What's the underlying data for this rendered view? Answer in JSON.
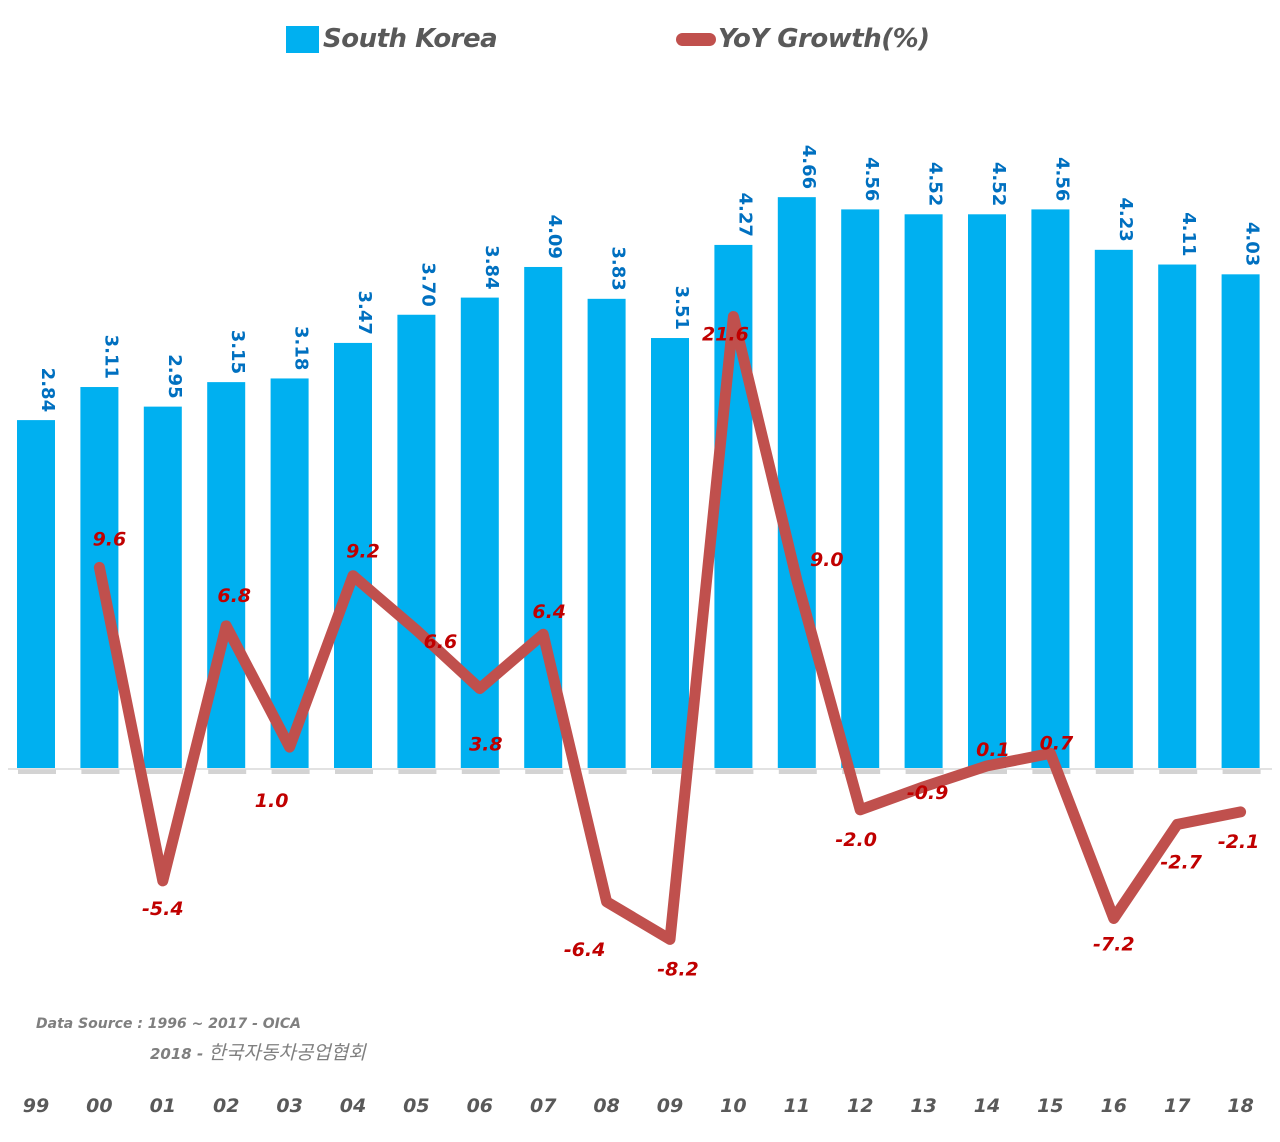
{
  "legend": {
    "bar_label": "South Korea",
    "line_label": "YoY Growth(%)"
  },
  "source": {
    "line1": "Data Source :  1996 ~ 2017 - OICA",
    "line2_prefix": "2018 - ",
    "line2_org": "한국자동차공업협회"
  },
  "chart_data": {
    "type": "bar",
    "title": "",
    "xlabel": "",
    "ylabel": "",
    "categories": [
      "99",
      "00",
      "01",
      "02",
      "03",
      "04",
      "05",
      "06",
      "07",
      "08",
      "09",
      "10",
      "11",
      "12",
      "13",
      "14",
      "15",
      "16",
      "17",
      "18"
    ],
    "series": [
      {
        "name": "South Korea",
        "type": "bar",
        "color": "#00b0f0",
        "label_color": "#0070c0",
        "axis": "left",
        "values": [
          2.84,
          3.11,
          2.95,
          3.15,
          3.18,
          3.47,
          3.7,
          3.84,
          4.09,
          3.83,
          3.51,
          4.27,
          4.66,
          4.56,
          4.52,
          4.52,
          4.56,
          4.23,
          4.11,
          4.03
        ],
        "labels": [
          "2.84",
          "3.11",
          "2.95",
          "3.15",
          "3.18",
          "3.47",
          "3.70",
          "3.84",
          "4.09",
          "3.83",
          "3.51",
          "4.27",
          "4.66",
          "4.56",
          "4.52",
          "4.52",
          "4.56",
          "4.23",
          "4.11",
          "4.03"
        ]
      },
      {
        "name": "YoY Growth(%)",
        "type": "line",
        "color": "#c0504d",
        "label_color": "#c00000",
        "axis": "right",
        "values": [
          null,
          9.6,
          -5.4,
          6.8,
          1.0,
          9.2,
          6.6,
          3.8,
          6.4,
          -6.4,
          -8.2,
          21.6,
          9.0,
          -2.0,
          -0.9,
          0.1,
          0.7,
          -7.2,
          -2.7,
          -2.1
        ],
        "labels": [
          "",
          "9.6",
          "-5.4",
          "6.8",
          "1.0",
          "9.2",
          "6.6",
          "3.8",
          "6.4",
          "-6.4",
          "-8.2",
          "21.6",
          "9.0",
          "-2.0",
          "-0.9",
          "0.1",
          "0.7",
          "-7.2",
          "-2.7",
          "-2.1"
        ]
      }
    ],
    "ylim_left": [
      0,
      6.27
    ],
    "ylim_right": [
      -8.9,
      21.6
    ],
    "axes_visible": false,
    "grid": false,
    "legend_position": "top-center"
  }
}
